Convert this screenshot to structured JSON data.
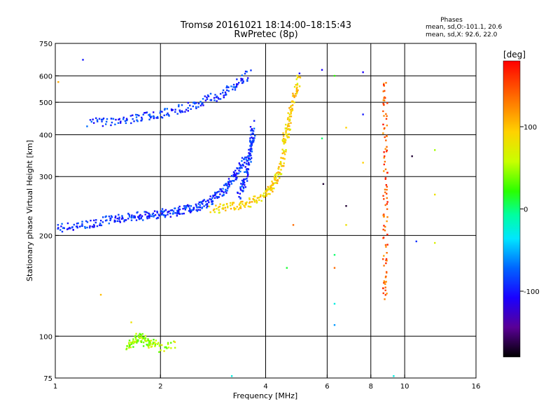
{
  "chart_data": {
    "type": "scatter",
    "title": "Tromsø 20161021 18:14:00–18:15:43",
    "subtitle": "RwPretec (8p)",
    "xlabel": "Frequency [MHz]",
    "ylabel": "Stationary phase Virtual Height [km]",
    "x_scale": "log",
    "y_scale": "log",
    "xlim": [
      1,
      16
    ],
    "ylim": [
      75,
      750
    ],
    "x_ticks": [
      1,
      2,
      4,
      6,
      8,
      10,
      16
    ],
    "y_ticks": [
      75,
      100,
      200,
      300,
      400,
      500,
      600,
      750
    ],
    "x_grid": [
      2,
      4,
      6,
      8,
      10
    ],
    "y_grid": [
      100,
      200,
      300,
      400,
      500,
      600
    ],
    "phase_info": {
      "heading": "Phases",
      "line1": "mean, sd,O:-101.1, 20.6",
      "line2": "mean, sd,X:  92.6, 22.0"
    },
    "colorbar": {
      "label": "[deg]",
      "range": [
        -180,
        180
      ],
      "ticks": [
        100,
        0,
        -100
      ]
    },
    "series": [
      {
        "phase": -100,
        "x": [
          1.02,
          1.1,
          1.2,
          1.3,
          1.4,
          1.5,
          1.6,
          1.7,
          1.8,
          1.9,
          2.0,
          2.1,
          2.2,
          2.3,
          2.4,
          2.5,
          2.6,
          2.7,
          2.8,
          2.9,
          3.0,
          3.1,
          3.2,
          3.3,
          3.4,
          3.5
        ],
        "y": [
          210,
          212,
          215,
          218,
          222,
          225,
          226,
          228,
          229,
          231,
          232,
          234,
          236,
          238,
          240,
          242,
          246,
          250,
          255,
          262,
          270,
          280,
          292,
          305,
          320,
          340
        ]
      },
      {
        "phase": -100,
        "x": [
          3.35,
          3.45,
          3.5,
          3.55,
          3.6,
          3.62,
          3.65,
          3.67,
          3.68
        ],
        "y": [
          260,
          280,
          300,
          320,
          340,
          360,
          380,
          400,
          430
        ]
      },
      {
        "phase": -100,
        "x": [
          1.25,
          1.4,
          1.55,
          1.7,
          1.85,
          2.0,
          2.2,
          2.4,
          2.6,
          2.8,
          3.0,
          3.2,
          3.4,
          3.6
        ],
        "y": [
          435,
          438,
          442,
          448,
          455,
          462,
          472,
          485,
          500,
          515,
          530,
          550,
          575,
          610
        ]
      },
      {
        "phase": 100,
        "x": [
          2.8,
          3.0,
          3.2,
          3.4,
          3.6,
          3.8,
          4.0,
          4.1,
          4.2,
          4.3,
          4.4,
          4.5,
          4.6,
          4.7
        ],
        "y": [
          240,
          241,
          243,
          246,
          250,
          256,
          264,
          272,
          282,
          295,
          315,
          345,
          385,
          440
        ]
      },
      {
        "phase": 100,
        "x": [
          4.5,
          4.6,
          4.7,
          4.8,
          4.9,
          5.0
        ],
        "y": [
          380,
          420,
          460,
          500,
          540,
          600
        ]
      },
      {
        "phase": 60,
        "x": [
          1.6,
          1.65,
          1.7,
          1.75,
          1.8,
          1.85,
          1.9,
          2.0,
          2.2
        ],
        "y": [
          93,
          95,
          98,
          100,
          97,
          94,
          96,
          92,
          95
        ]
      },
      {
        "phase": 150,
        "x": [
          8.8,
          8.8,
          8.8,
          8.8,
          8.8,
          8.8,
          8.8,
          8.8
        ],
        "y": [
          570,
          480,
          380,
          300,
          240,
          190,
          150,
          130
        ]
      }
    ],
    "scattered_points": [
      {
        "x": 1.2,
        "y": 670,
        "phase": -110
      },
      {
        "x": 1.02,
        "y": 575,
        "phase": 120
      },
      {
        "x": 1.35,
        "y": 133,
        "phase": 110
      },
      {
        "x": 1.65,
        "y": 110,
        "phase": 90
      },
      {
        "x": 2.2,
        "y": 96,
        "phase": 100
      },
      {
        "x": 3.2,
        "y": 76,
        "phase": -20
      },
      {
        "x": 4.6,
        "y": 160,
        "phase": 20
      },
      {
        "x": 4.8,
        "y": 215,
        "phase": 150
      },
      {
        "x": 5.0,
        "y": 610,
        "phase": -120
      },
      {
        "x": 5.8,
        "y": 625,
        "phase": -120
      },
      {
        "x": 5.85,
        "y": 285,
        "phase": -170
      },
      {
        "x": 5.8,
        "y": 390,
        "phase": 10
      },
      {
        "x": 6.3,
        "y": 600,
        "phase": 30
      },
      {
        "x": 6.3,
        "y": 175,
        "phase": 10
      },
      {
        "x": 6.3,
        "y": 160,
        "phase": 150
      },
      {
        "x": 6.3,
        "y": 125,
        "phase": -20
      },
      {
        "x": 6.3,
        "y": 108,
        "phase": -60
      },
      {
        "x": 6.8,
        "y": 420,
        "phase": 100
      },
      {
        "x": 6.8,
        "y": 245,
        "phase": -170
      },
      {
        "x": 6.8,
        "y": 215,
        "phase": 90
      },
      {
        "x": 7.6,
        "y": 615,
        "phase": -120
      },
      {
        "x": 7.6,
        "y": 460,
        "phase": -110
      },
      {
        "x": 7.6,
        "y": 330,
        "phase": 100
      },
      {
        "x": 9.3,
        "y": 76,
        "phase": -20
      },
      {
        "x": 10.5,
        "y": 345,
        "phase": -170
      },
      {
        "x": 10.8,
        "y": 192,
        "phase": -100
      },
      {
        "x": 12.2,
        "y": 360,
        "phase": 60
      },
      {
        "x": 12.2,
        "y": 265,
        "phase": 90
      },
      {
        "x": 12.2,
        "y": 190,
        "phase": 80
      }
    ]
  }
}
